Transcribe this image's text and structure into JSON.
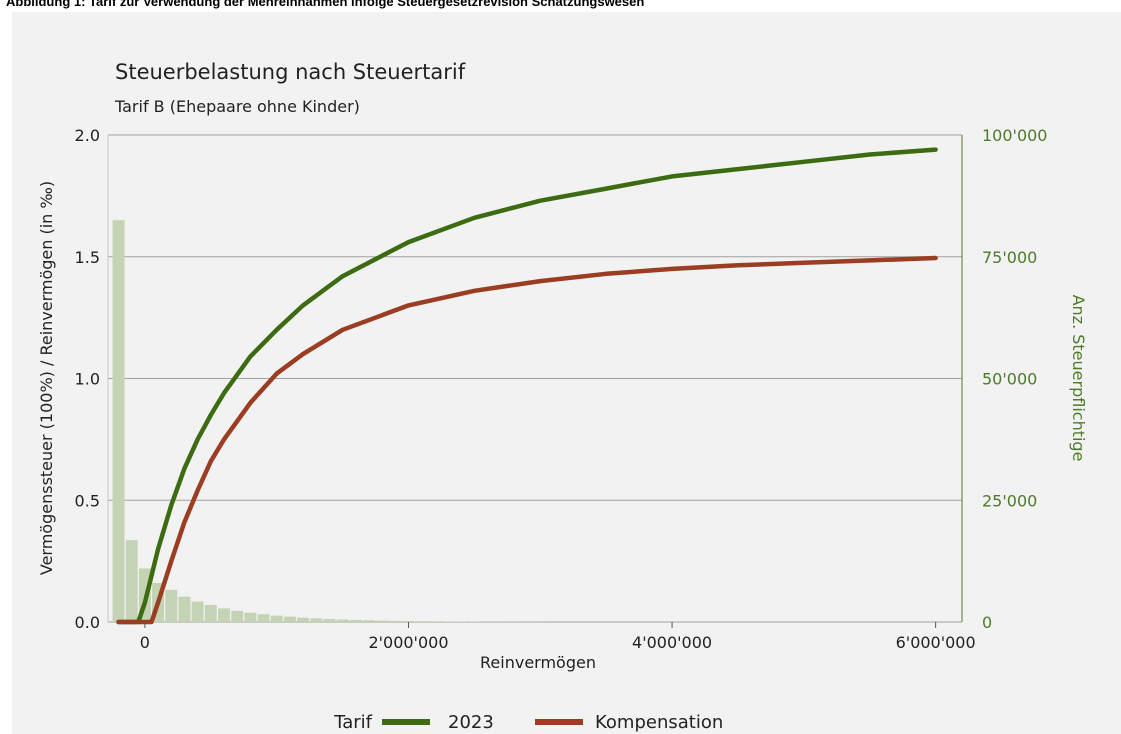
{
  "caption": "Abbildung 1: Tarif zur Verwendung der Mehreinnahmen infolge Steuergesetzrevision Schätzungswesen",
  "colors": {
    "series_2023": "#3d6b12",
    "series_kompensation": "#9b3d22",
    "histogram": "#c5d3b5",
    "right_axis": "#4e7a2a",
    "panel_background": "#f2f2f2"
  },
  "chart_data": {
    "type": "line",
    "title": "Steuerbelastung nach Steuertarif",
    "subtitle": "Tarif B (Ehepaare ohne Kinder)",
    "xlabel": "Reinvermögen",
    "ylabel": "Vermögenssteuer (100%) / Reinvermögen (in ‰)",
    "ylabel_right": "Anz. Steuerpflichtige",
    "xlim": [
      -280000,
      6200000
    ],
    "ylim": [
      0,
      2.0
    ],
    "ylim_right": [
      0,
      100000
    ],
    "x_ticks": [
      0,
      2000000,
      4000000,
      6000000
    ],
    "x_tick_labels": [
      "0",
      "2'000'000",
      "4'000'000",
      "6'000'000"
    ],
    "y_ticks": [
      0,
      0.5,
      1.0,
      1.5,
      2.0
    ],
    "y_tick_labels": [
      "0.0",
      "0.5",
      "1.0",
      "1.5",
      "2.0"
    ],
    "y_right_ticks": [
      0,
      25000,
      50000,
      75000,
      100000
    ],
    "y_right_tick_labels": [
      "0",
      "25'000",
      "50'000",
      "75'000",
      "100'000"
    ],
    "grid": "horizontal",
    "legend": {
      "position": "bottom",
      "title": "Tarif",
      "entries": [
        "2023",
        "Kompensation"
      ]
    },
    "series": [
      {
        "name": "2023",
        "axis": "left",
        "x": [
          -200000,
          -50000,
          0,
          100000,
          200000,
          300000,
          400000,
          500000,
          600000,
          800000,
          1000000,
          1200000,
          1500000,
          2000000,
          2500000,
          3000000,
          3500000,
          4000000,
          4500000,
          5000000,
          5500000,
          6000000
        ],
        "y": [
          0,
          0,
          0.08,
          0.3,
          0.48,
          0.63,
          0.75,
          0.85,
          0.94,
          1.09,
          1.2,
          1.3,
          1.42,
          1.56,
          1.66,
          1.73,
          1.78,
          1.83,
          1.86,
          1.89,
          1.92,
          1.94
        ]
      },
      {
        "name": "Kompensation",
        "axis": "left",
        "x": [
          -200000,
          -50000,
          50000,
          100000,
          200000,
          300000,
          400000,
          500000,
          600000,
          800000,
          1000000,
          1200000,
          1500000,
          2000000,
          2500000,
          3000000,
          3500000,
          4000000,
          4500000,
          5000000,
          5500000,
          6000000
        ],
        "y": [
          0,
          0,
          0,
          0.08,
          0.25,
          0.41,
          0.54,
          0.66,
          0.75,
          0.9,
          1.02,
          1.1,
          1.2,
          1.3,
          1.36,
          1.4,
          1.43,
          1.45,
          1.465,
          1.475,
          1.485,
          1.495
        ]
      },
      {
        "name": "Anz. Steuerpflichtige",
        "type": "bar",
        "axis": "right",
        "bin_width": 100000,
        "x": [
          -200000,
          -100000,
          0,
          100000,
          200000,
          300000,
          400000,
          500000,
          600000,
          700000,
          800000,
          900000,
          1000000,
          1100000,
          1200000,
          1300000,
          1400000,
          1500000,
          1600000,
          1700000,
          1800000,
          1900000,
          2000000,
          2100000,
          2200000,
          2300000,
          2400000,
          2500000,
          2600000,
          2700000,
          2800000,
          2900000,
          3000000
        ],
        "y": [
          82500,
          16800,
          11000,
          8000,
          6600,
          5200,
          4200,
          3500,
          2800,
          2300,
          1900,
          1600,
          1300,
          1100,
          900,
          750,
          620,
          520,
          430,
          360,
          300,
          250,
          210,
          170,
          140,
          120,
          100,
          80,
          60,
          50,
          40,
          30,
          20
        ]
      }
    ]
  }
}
